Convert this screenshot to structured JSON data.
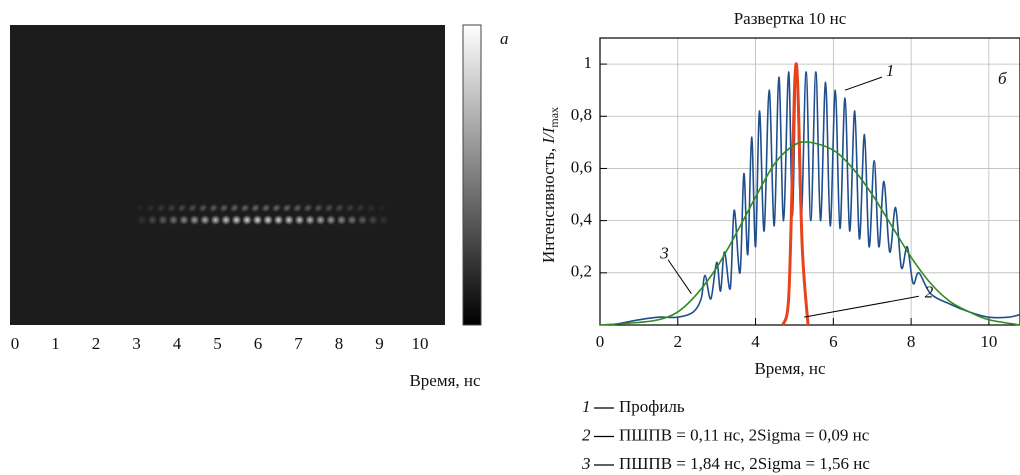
{
  "chart_data": [
    {
      "type": "image",
      "panel": "а",
      "xlabel": "Время, нс",
      "xlim": [
        -0.12,
        10.6
      ],
      "xticks": [
        0,
        1,
        2,
        3,
        4,
        5,
        6,
        7,
        8,
        9,
        10
      ]
    },
    {
      "type": "line",
      "title": "Развертка 10 нс",
      "panel": "б",
      "xlabel": "Время, нс",
      "ylabel": [
        "Интенсивность, ",
        "I/I",
        "max"
      ],
      "xlim": [
        0,
        10.8
      ],
      "ylim": [
        0,
        1.1
      ],
      "grid": true,
      "xticks": [
        0,
        2,
        4,
        6,
        8,
        10
      ],
      "yticks": [
        {
          "value": 0.2,
          "label": "0,2"
        },
        {
          "value": 0.4,
          "label": "0,4"
        },
        {
          "value": 0.6,
          "label": "0,6"
        },
        {
          "value": 0.8,
          "label": "0,8"
        },
        1
      ],
      "series": [
        {
          "label": "1",
          "name": "Профиль",
          "color": "#1f4e8c",
          "x": [
            0.3,
            1.0,
            1.5,
            2.0,
            2.4,
            2.6,
            2.7,
            2.85,
            3.0,
            3.1,
            3.2,
            3.35,
            3.45,
            3.6,
            3.7,
            3.8,
            3.9,
            4.0,
            4.1,
            4.22,
            4.35,
            4.48,
            4.6,
            4.72,
            4.85,
            4.95,
            5.05,
            5.17,
            5.3,
            5.42,
            5.55,
            5.67,
            5.8,
            5.92,
            6.05,
            6.17,
            6.3,
            6.42,
            6.55,
            6.67,
            6.8,
            6.92,
            7.05,
            7.17,
            7.3,
            7.45,
            7.6,
            7.75,
            7.9,
            8.05,
            8.2,
            8.5,
            9.0,
            9.5,
            10.0,
            10.5,
            10.8
          ],
          "values": [
            0.0,
            0.02,
            0.03,
            0.03,
            0.05,
            0.1,
            0.19,
            0.1,
            0.24,
            0.13,
            0.28,
            0.14,
            0.44,
            0.2,
            0.58,
            0.27,
            0.72,
            0.3,
            0.82,
            0.36,
            0.9,
            0.38,
            0.95,
            0.4,
            0.97,
            0.42,
            1.0,
            0.4,
            0.97,
            0.4,
            0.97,
            0.4,
            0.93,
            0.38,
            0.9,
            0.37,
            0.87,
            0.36,
            0.82,
            0.33,
            0.73,
            0.3,
            0.63,
            0.3,
            0.55,
            0.28,
            0.45,
            0.22,
            0.3,
            0.16,
            0.2,
            0.12,
            0.08,
            0.05,
            0.03,
            0.03,
            0.04
          ]
        },
        {
          "label": "2",
          "name": "ПШПВ = 0,11 нс, 2Sigma = 0,09 нс",
          "color": "#e8431c",
          "x": [
            4.7,
            4.85,
            4.95,
            5.0,
            5.05,
            5.1,
            5.2,
            5.35
          ],
          "values": [
            0,
            0.1,
            0.6,
            0.9,
            1.0,
            0.85,
            0.3,
            0
          ]
        },
        {
          "label": "3",
          "name": "ПШПВ = 1,84 нс, 2Sigma = 1,56 нс",
          "color": "#2e8b1e",
          "x": [
            0,
            1,
            1.5,
            2,
            2.5,
            3,
            3.5,
            4,
            4.5,
            5,
            5.4,
            6,
            6.5,
            7,
            7.5,
            8,
            8.5,
            9,
            9.5,
            10,
            10.8
          ],
          "values": [
            0.0,
            0.01,
            0.02,
            0.05,
            0.12,
            0.22,
            0.35,
            0.49,
            0.62,
            0.69,
            0.7,
            0.67,
            0.6,
            0.5,
            0.38,
            0.26,
            0.16,
            0.09,
            0.05,
            0.02,
            0.0
          ]
        }
      ]
    }
  ]
}
